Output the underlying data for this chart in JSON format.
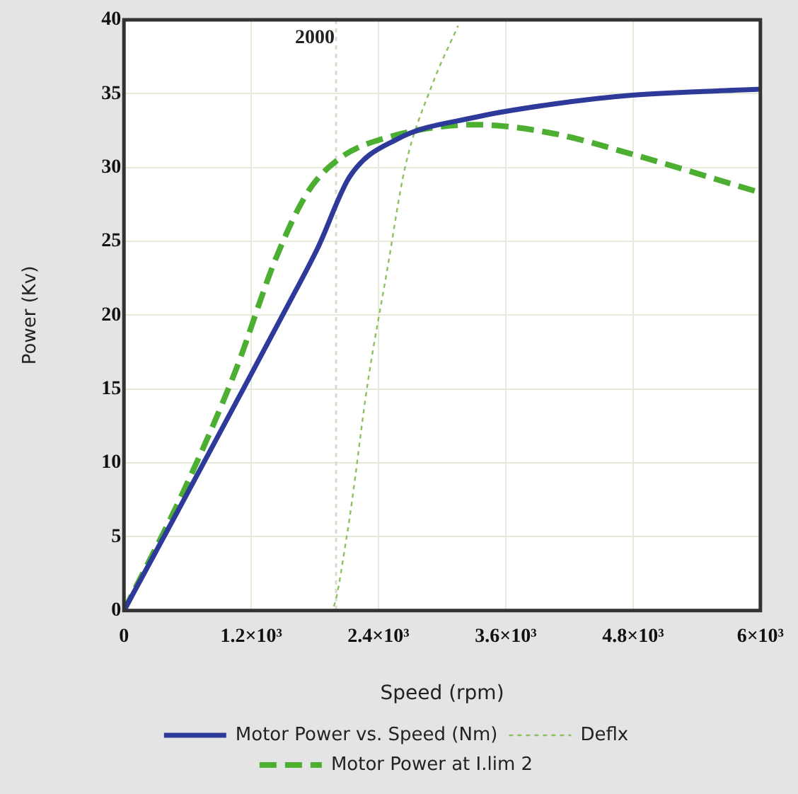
{
  "chart_data": {
    "type": "line",
    "xlabel": "Speed (rpm)",
    "ylabel": "Power (Kv)",
    "xlim": [
      0,
      6000
    ],
    "ylim": [
      0,
      40
    ],
    "xticks": [
      0,
      {
        "value": 1200,
        "label": "1.2×10³"
      },
      {
        "value": 2400,
        "label": "2.4×10³"
      },
      {
        "value": 3600,
        "label": "3.6×10³"
      },
      {
        "value": 4800,
        "label": "4.8×10³"
      },
      {
        "value": 6000,
        "label": "6×10³"
      }
    ],
    "yticks": [
      0,
      5,
      10,
      15,
      20,
      25,
      30,
      35,
      40
    ],
    "grid": true,
    "legend": "bottom",
    "marker": "none",
    "ref_lines": [
      {
        "axis": "x",
        "value": 2000,
        "label": "2000",
        "color": "#d8dcc8",
        "line_style": "dotted"
      }
    ],
    "series": [
      {
        "name": "Motor Power vs. Speed (Nm)",
        "color": "#2e3a9a",
        "line_style": "solid",
        "x": [
          0,
          550,
          1050,
          1540,
          1830,
          2130,
          2570,
          3310,
          4050,
          4790,
          6000
        ],
        "values": [
          0,
          7.3,
          14,
          20.6,
          24.6,
          29.4,
          31.9,
          33.4,
          34.3,
          34.9,
          35.3
        ]
      },
      {
        "name": "Deflx",
        "color": "#8cc060",
        "line_style": "dotted",
        "x": [
          0,
          1950,
          2100,
          2300,
          2480,
          2650,
          2900,
          3150
        ],
        "values": [
          0,
          0,
          5,
          15.5,
          23,
          30,
          35.5,
          39.6
        ]
      },
      {
        "name": "Motor Power at I.lim 2",
        "color": "#4caf32",
        "line_style": "dashed",
        "x": [
          0,
          550,
          1050,
          1430,
          1730,
          2030,
          2420,
          3310,
          4050,
          4790,
          6000
        ],
        "values": [
          0,
          7.9,
          16.2,
          23.8,
          28.3,
          30.6,
          31.9,
          32.9,
          32.3,
          30.9,
          28.3
        ]
      }
    ]
  }
}
